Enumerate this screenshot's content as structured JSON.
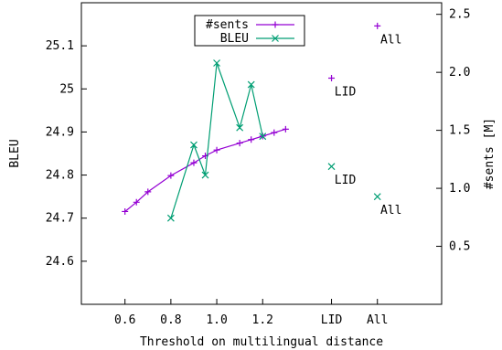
{
  "chart_data": {
    "type": "line",
    "xlabel": "Threshold on multilingual distance",
    "ylabel": "BLEU",
    "y2label": "#sents [M]",
    "x_ticks": [
      {
        "value": 0.6,
        "label": "0.6"
      },
      {
        "value": 0.8,
        "label": "0.8"
      },
      {
        "value": 1.0,
        "label": "1.0"
      },
      {
        "value": 1.2,
        "label": "1.2"
      },
      {
        "value": 1.5,
        "label": "LID"
      },
      {
        "value": 1.7,
        "label": "All"
      }
    ],
    "xlim": [
      0.41,
      1.98
    ],
    "ylim": [
      24.5,
      25.2
    ],
    "y_ticks": [
      24.6,
      24.7,
      24.8,
      24.9,
      25,
      25.1
    ],
    "y2lim": [
      0.0,
      2.6
    ],
    "y2_ticks": [
      0.5,
      1.0,
      1.5,
      2.0,
      2.5
    ],
    "grid": false,
    "legend_position": "top-center",
    "series": [
      {
        "name": "#sents",
        "axis": "right",
        "color": "#9400d3",
        "marker": "plus",
        "x": [
          0.6,
          0.65,
          0.7,
          0.8,
          0.9,
          0.95,
          1.0,
          1.1,
          1.15,
          1.2,
          1.25,
          1.3
        ],
        "values": [
          0.8,
          0.88,
          0.97,
          1.11,
          1.22,
          1.28,
          1.33,
          1.39,
          1.42,
          1.45,
          1.48,
          1.51
        ]
      },
      {
        "name": "BLEU",
        "axis": "left",
        "color": "#009e73",
        "marker": "cross",
        "x": [
          0.8,
          0.9,
          0.95,
          1.0,
          1.1,
          1.15,
          1.2
        ],
        "values": [
          24.7,
          24.87,
          24.8,
          25.06,
          24.91,
          25.01,
          24.89
        ]
      }
    ],
    "extra_points": [
      {
        "series": "#sents",
        "x": 1.5,
        "value": 1.95,
        "label": "LID"
      },
      {
        "series": "#sents",
        "x": 1.7,
        "value": 2.4,
        "label": "All"
      },
      {
        "series": "BLEU",
        "x": 1.5,
        "value": 24.82,
        "label": "LID"
      },
      {
        "series": "BLEU",
        "x": 1.7,
        "value": 24.75,
        "label": "All"
      }
    ]
  }
}
